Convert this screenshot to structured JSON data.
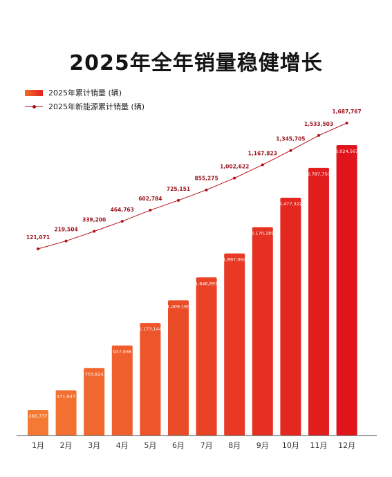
{
  "chart_data": {
    "title": "2025年全年销量稳健增长",
    "type": "bar",
    "categories": [
      "1月",
      "2月",
      "3月",
      "4月",
      "5月",
      "6月",
      "7月",
      "8月",
      "9月",
      "10月",
      "11月",
      "12月"
    ],
    "series": [
      {
        "name": "2025年累计销量 (辆)",
        "type": "bar",
        "values": [
          266737,
          471647,
          703824,
          937936,
          1173144,
          1409180,
          1646897,
          1897064,
          2170189,
          2477322,
          2787750,
          3024567
        ],
        "labels": [
          "266,737",
          "471,647",
          "703,824",
          "937,936",
          "1,173,144",
          "1,409,180",
          "1,646,897",
          "1,897,064",
          "2,170,189",
          "2,477,322",
          "2,787,750",
          "3,024,567"
        ]
      },
      {
        "name": "2025年新能源累计销量 (辆)",
        "type": "line",
        "values": [
          121071,
          219504,
          339200,
          464763,
          602784,
          725151,
          855275,
          1002622,
          1167823,
          1345705,
          1533503,
          1687767
        ],
        "labels": [
          "121,071",
          "219,504",
          "339,200",
          "464,763",
          "602,784",
          "725,151",
          "855,275",
          "1,002,622",
          "1,167,823",
          "1,345,705",
          "1,533,503",
          "1,687,767"
        ]
      }
    ],
    "colors": {
      "bar_start": "#f47a33",
      "bar_end": "#e0141b",
      "line": "#b1101a",
      "axis": "#444444",
      "label_dark": "#9b1620",
      "label_light": "#ffffff"
    },
    "grid": false
  }
}
